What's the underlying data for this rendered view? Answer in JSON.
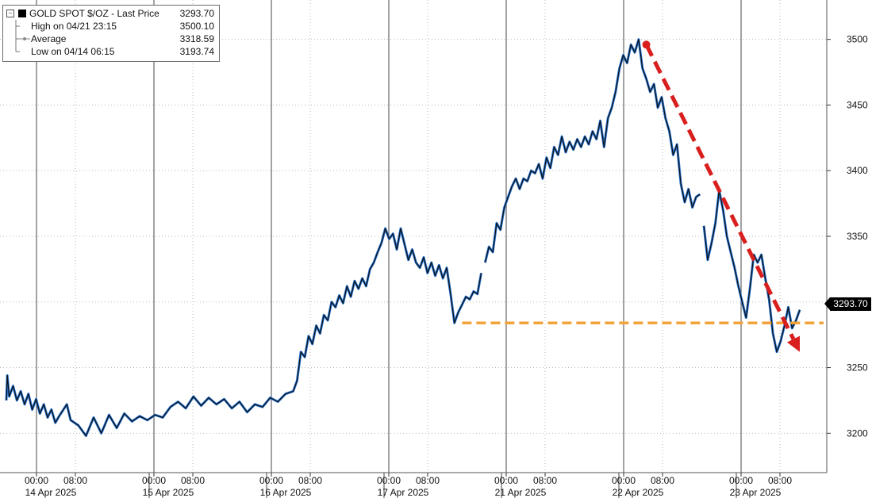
{
  "legend": {
    "title": "GOLD SPOT $/OZ - Last Price",
    "last_price": "3293.70",
    "rows": [
      {
        "label": "High on 04/21 23:15",
        "value": "3500.10"
      },
      {
        "label": "Average",
        "value": "3318.59"
      },
      {
        "label": "Low on 04/14 06:15",
        "value": "3193.74"
      }
    ]
  },
  "last_tag": "3293.70",
  "chart_data": {
    "type": "line",
    "ylim": [
      3170,
      3530
    ],
    "y_ticks": [
      3200,
      3250,
      3300,
      3350,
      3400,
      3450,
      3500
    ],
    "grid": true,
    "colors": {
      "line": "#111111",
      "fill": "#1f6fd1",
      "support": "#f2a33a",
      "arrow": "#d91e1e"
    },
    "sessions": [
      {
        "label": "14 Apr 2025",
        "ticks": [
          "00:00",
          "08:00"
        ]
      },
      {
        "label": "15 Apr 2025",
        "ticks": [
          "00:00",
          "08:00"
        ]
      },
      {
        "label": "16 Apr 2025",
        "ticks": [
          "00:00",
          "08:00"
        ]
      },
      {
        "label": "17 Apr 2025",
        "ticks": [
          "00:00",
          "08:00"
        ]
      },
      {
        "label": "21 Apr 2025",
        "ticks": [
          "00:00",
          "08:00"
        ]
      },
      {
        "label": "22 Apr 2025",
        "ticks": [
          "00:00",
          "08:00"
        ]
      },
      {
        "label": "23 Apr 2025",
        "ticks": [
          "00:00",
          "08:00"
        ]
      }
    ],
    "series": [
      {
        "segments": [
          [
            [
              "14 Apr 2025 06:15",
              3225
            ],
            [
              "14 Apr 2025 06:30",
              3244
            ],
            [
              "14 Apr 2025 07:00",
              3228
            ],
            [
              "14 Apr 2025 08:00",
              3236
            ],
            [
              "14 Apr 2025 09:00",
              3225
            ],
            [
              "14 Apr 2025 10:00",
              3232
            ],
            [
              "14 Apr 2025 11:00",
              3222
            ],
            [
              "14 Apr 2025 12:00",
              3230
            ],
            [
              "14 Apr 2025 13:00",
              3218
            ],
            [
              "14 Apr 2025 14:00",
              3226
            ],
            [
              "14 Apr 2025 15:00",
              3215
            ],
            [
              "14 Apr 2025 16:00",
              3222
            ],
            [
              "14 Apr 2025 17:00",
              3212
            ],
            [
              "14 Apr 2025 18:00",
              3218
            ],
            [
              "14 Apr 2025 19:00",
              3208
            ],
            [
              "14 Apr 2025 20:00",
              3213
            ],
            [
              "14 Apr 2025 22:00",
              3222
            ],
            [
              "14 Apr 2025 23:00",
              3210
            ],
            [
              "15 Apr 2025 01:00",
              3206
            ],
            [
              "15 Apr 2025 03:00",
              3198
            ],
            [
              "15 Apr 2025 05:00",
              3212
            ],
            [
              "15 Apr 2025 07:00",
              3200
            ],
            [
              "15 Apr 2025 09:00",
              3214
            ],
            [
              "15 Apr 2025 11:00",
              3204
            ],
            [
              "15 Apr 2025 13:00",
              3215
            ],
            [
              "15 Apr 2025 15:00",
              3209
            ],
            [
              "15 Apr 2025 17:00",
              3213
            ],
            [
              "15 Apr 2025 19:00",
              3210
            ],
            [
              "15 Apr 2025 21:00",
              3214
            ],
            [
              "15 Apr 2025 23:00",
              3212
            ],
            [
              "16 Apr 2025 01:00",
              3220
            ],
            [
              "16 Apr 2025 03:00",
              3224
            ],
            [
              "16 Apr 2025 05:00",
              3219
            ],
            [
              "16 Apr 2025 07:00",
              3228
            ],
            [
              "16 Apr 2025 09:00",
              3221
            ],
            [
              "16 Apr 2025 11:00",
              3227
            ],
            [
              "16 Apr 2025 13:00",
              3222
            ],
            [
              "16 Apr 2025 15:00",
              3226
            ],
            [
              "16 Apr 2025 17:00",
              3219
            ],
            [
              "16 Apr 2025 19:00",
              3224
            ],
            [
              "16 Apr 2025 21:00",
              3216
            ],
            [
              "16 Apr 2025 23:00",
              3222
            ],
            [
              "17 Apr 2025 01:00",
              3220
            ],
            [
              "17 Apr 2025 03:00",
              3227
            ],
            [
              "17 Apr 2025 05:00",
              3224
            ],
            [
              "17 Apr 2025 07:00",
              3230
            ],
            [
              "17 Apr 2025 09:00",
              3232
            ],
            [
              "17 Apr 2025 10:00",
              3240
            ],
            [
              "17 Apr 2025 11:00",
              3262
            ],
            [
              "17 Apr 2025 12:00",
              3258
            ],
            [
              "17 Apr 2025 13:00",
              3274
            ],
            [
              "17 Apr 2025 14:00",
              3268
            ],
            [
              "17 Apr 2025 15:00",
              3282
            ],
            [
              "17 Apr 2025 16:00",
              3276
            ],
            [
              "17 Apr 2025 17:00",
              3290
            ],
            [
              "17 Apr 2025 18:00",
              3286
            ],
            [
              "17 Apr 2025 19:00",
              3300
            ],
            [
              "17 Apr 2025 20:00",
              3296
            ],
            [
              "17 Apr 2025 21:00",
              3305
            ],
            [
              "17 Apr 2025 22:00",
              3299
            ],
            [
              "17 Apr 2025 23:00",
              3312
            ],
            [
              "18 Apr 2025 00:00",
              3304
            ],
            [
              "18 Apr 2025 01:00",
              3316
            ],
            [
              "18 Apr 2025 02:00",
              3310
            ],
            [
              "18 Apr 2025 03:00",
              3318
            ],
            [
              "18 Apr 2025 04:00",
              3312
            ],
            [
              "18 Apr 2025 05:00",
              3325
            ],
            [
              "18 Apr 2025 06:00",
              3330
            ],
            [
              "18 Apr 2025 07:00",
              3338
            ],
            [
              "18 Apr 2025 08:00",
              3345
            ],
            [
              "18 Apr 2025 09:00",
              3356
            ],
            [
              "18 Apr 2025 10:00",
              3348
            ],
            [
              "18 Apr 2025 11:00",
              3352
            ],
            [
              "18 Apr 2025 12:00",
              3340
            ],
            [
              "18 Apr 2025 13:00",
              3356
            ],
            [
              "18 Apr 2025 14:00",
              3344
            ],
            [
              "18 Apr 2025 15:00",
              3332
            ],
            [
              "18 Apr 2025 16:00",
              3340
            ],
            [
              "18 Apr 2025 17:00",
              3330
            ],
            [
              "18 Apr 2025 18:00",
              3326
            ],
            [
              "18 Apr 2025 19:00",
              3334
            ],
            [
              "18 Apr 2025 20:00",
              3322
            ],
            [
              "18 Apr 2025 21:00",
              3330
            ],
            [
              "18 Apr 2025 22:00",
              3320
            ],
            [
              "18 Apr 2025 23:00",
              3328
            ],
            [
              "19 Apr 2025 00:00",
              3318
            ],
            [
              "19 Apr 2025 01:00",
              3326
            ],
            [
              "19 Apr 2025 02:00",
              3306
            ],
            [
              "19 Apr 2025 03:00",
              3284
            ],
            [
              "19 Apr 2025 04:00",
              3292
            ],
            [
              "19 Apr 2025 05:00",
              3298
            ],
            [
              "19 Apr 2025 06:00",
              3304
            ],
            [
              "19 Apr 2025 07:00",
              3302
            ],
            [
              "19 Apr 2025 08:00",
              3308
            ],
            [
              "19 Apr 2025 09:00",
              3306
            ],
            [
              "19 Apr 2025 10:00",
              3322
            ]
          ],
          [
            [
              "19 Apr 2025 11:00",
              3330
            ],
            [
              "19 Apr 2025 12:00",
              3342
            ],
            [
              "19 Apr 2025 13:00",
              3338
            ],
            [
              "19 Apr 2025 14:00",
              3360
            ],
            [
              "19 Apr 2025 15:00",
              3355
            ],
            [
              "19 Apr 2025 16:00",
              3372
            ],
            [
              "19 Apr 2025 17:00",
              3380
            ],
            [
              "19 Apr 2025 18:00",
              3388
            ],
            [
              "19 Apr 2025 19:00",
              3394
            ],
            [
              "19 Apr 2025 20:00",
              3386
            ],
            [
              "19 Apr 2025 21:00",
              3394
            ],
            [
              "19 Apr 2025 22:00",
              3392
            ],
            [
              "19 Apr 2025 23:00",
              3400
            ],
            [
              "20 Apr 2025 00:00",
              3398
            ],
            [
              "20 Apr 2025 01:00",
              3405
            ],
            [
              "20 Apr 2025 02:00",
              3394
            ],
            [
              "20 Apr 2025 03:00",
              3410
            ],
            [
              "20 Apr 2025 04:00",
              3402
            ],
            [
              "20 Apr 2025 05:00",
              3418
            ],
            [
              "20 Apr 2025 06:00",
              3412
            ],
            [
              "20 Apr 2025 07:00",
              3426
            ],
            [
              "20 Apr 2025 08:00",
              3414
            ],
            [
              "20 Apr 2025 09:00",
              3422
            ],
            [
              "20 Apr 2025 10:00",
              3416
            ],
            [
              "20 Apr 2025 11:00",
              3424
            ],
            [
              "20 Apr 2025 12:00",
              3418
            ],
            [
              "20 Apr 2025 13:00",
              3426
            ],
            [
              "20 Apr 2025 14:00",
              3420
            ],
            [
              "20 Apr 2025 15:00",
              3430
            ],
            [
              "20 Apr 2025 16:00",
              3424
            ],
            [
              "20 Apr 2025 17:00",
              3438
            ],
            [
              "20 Apr 2025 18:00",
              3418
            ],
            [
              "20 Apr 2025 19:00",
              3440
            ],
            [
              "20 Apr 2025 20:00",
              3448
            ],
            [
              "20 Apr 2025 21:00",
              3460
            ],
            [
              "20 Apr 2025 22:00",
              3478
            ],
            [
              "20 Apr 2025 23:00",
              3488
            ],
            [
              "21 Apr 2025 00:00",
              3482
            ],
            [
              "21 Apr 2025 01:00",
              3496
            ],
            [
              "21 Apr 2025 02:00",
              3490
            ],
            [
              "21 Apr 2025 03:00",
              3500
            ],
            [
              "21 Apr 2025 04:00",
              3478
            ],
            [
              "21 Apr 2025 05:00",
              3470
            ],
            [
              "21 Apr 2025 06:00",
              3460
            ],
            [
              "21 Apr 2025 07:00",
              3466
            ],
            [
              "21 Apr 2025 08:00",
              3448
            ],
            [
              "21 Apr 2025 09:00",
              3456
            ],
            [
              "21 Apr 2025 10:00",
              3440
            ],
            [
              "21 Apr 2025 11:00",
              3430
            ],
            [
              "21 Apr 2025 12:00",
              3412
            ],
            [
              "21 Apr 2025 13:00",
              3420
            ],
            [
              "21 Apr 2025 14:00",
              3390
            ],
            [
              "21 Apr 2025 15:00",
              3376
            ],
            [
              "21 Apr 2025 16:00",
              3386
            ],
            [
              "21 Apr 2025 17:00",
              3372
            ],
            [
              "21 Apr 2025 18:00",
              3380
            ],
            [
              "21 Apr 2025 19:00",
              3382
            ]
          ],
          [
            [
              "21 Apr 2025 20:00",
              3358
            ],
            [
              "21 Apr 2025 21:00",
              3332
            ],
            [
              "21 Apr 2025 22:00",
              3345
            ],
            [
              "21 Apr 2025 23:00",
              3360
            ],
            [
              "22 Apr 2025 00:00",
              3385
            ],
            [
              "22 Apr 2025 01:00",
              3370
            ],
            [
              "22 Apr 2025 02:00",
              3350
            ],
            [
              "22 Apr 2025 03:00",
              3338
            ],
            [
              "22 Apr 2025 04:00",
              3326
            ],
            [
              "22 Apr 2025 05:00",
              3312
            ],
            [
              "22 Apr 2025 06:00",
              3300
            ],
            [
              "22 Apr 2025 07:00",
              3288
            ],
            [
              "22 Apr 2025 08:00",
              3310
            ],
            [
              "22 Apr 2025 09:00",
              3336
            ],
            [
              "22 Apr 2025 10:00",
              3330
            ],
            [
              "22 Apr 2025 11:00",
              3336
            ],
            [
              "22 Apr 2025 12:00",
              3318
            ],
            [
              "22 Apr 2025 13:00",
              3302
            ],
            [
              "22 Apr 2025 14:00",
              3276
            ],
            [
              "22 Apr 2025 15:00",
              3262
            ],
            [
              "22 Apr 2025 16:00",
              3270
            ],
            [
              "22 Apr 2025 17:00",
              3282
            ],
            [
              "22 Apr 2025 18:00",
              3296
            ],
            [
              "22 Apr 2025 19:00",
              3280
            ],
            [
              "22 Apr 2025 20:00",
              3286
            ],
            [
              "22 Apr 2025 21:00",
              3294
            ]
          ]
        ]
      }
    ],
    "support_line": {
      "y": 3284,
      "from": "19 Apr 2025 05:00"
    },
    "trend_arrow": {
      "from": [
        "21 Apr 2025 05:00",
        3496
      ],
      "to": [
        "22 Apr 2025 21:00",
        3262
      ]
    }
  }
}
